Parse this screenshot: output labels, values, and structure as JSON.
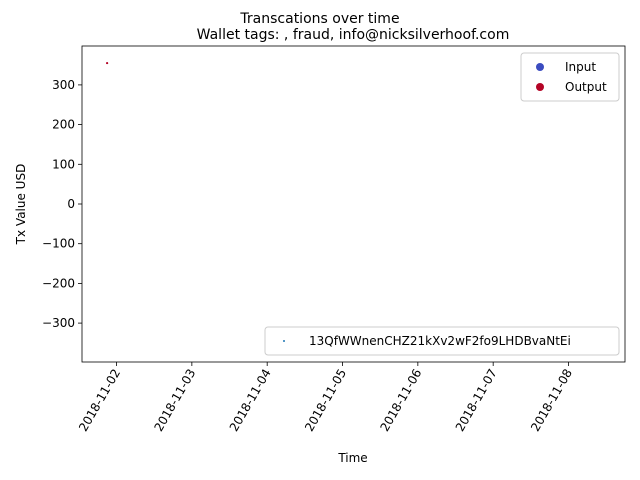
{
  "chart_data": {
    "type": "scatter",
    "suptitle": "Transcations over time",
    "title": "Wallet tags: , fraud, info@nicksilverhoof.com",
    "xlabel": "Time",
    "ylabel": "Tx Value USD",
    "x_ticks": [
      "2018-11-02",
      "2018-11-03",
      "2018-11-04",
      "2018-11-05",
      "2018-11-06",
      "2018-11-07",
      "2018-11-08"
    ],
    "y_ticks": [
      300,
      200,
      100,
      0,
      -100,
      -200,
      -300
    ],
    "y_tick_labels": [
      "300",
      "200",
      "100",
      "0",
      "−100",
      "−200",
      "−300"
    ],
    "xlim": [
      "2018-11-01 13:00",
      "2018-11-08 18:00"
    ],
    "ylim": [
      -398,
      398
    ],
    "grid": false,
    "series": [
      {
        "name": "Output",
        "color": "#b40426",
        "points": [
          {
            "x": "2018-11-01 21:00",
            "y": 355
          }
        ]
      }
    ],
    "legends": [
      {
        "placement": "upper right",
        "entries": [
          {
            "label": "Input",
            "color": "#3b4cc0",
            "marker": "circle"
          },
          {
            "label": "Output",
            "color": "#b40426",
            "marker": "circle"
          }
        ]
      },
      {
        "placement": "lower right",
        "entries": [
          {
            "label": "13QfWWnenCHZ21kXv2wF2fo9LHDBvaNtEi",
            "color": "#1f77b4",
            "marker": "dot"
          }
        ]
      }
    ]
  }
}
